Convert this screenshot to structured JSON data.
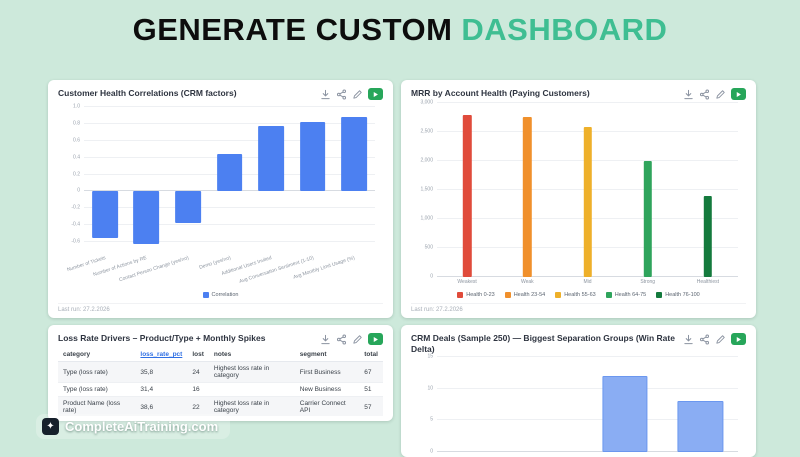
{
  "header": {
    "title_main": "GENERATE CUSTOM",
    "title_accent": "DASHBOARD"
  },
  "theme": {
    "background": "#cde9db",
    "accent": "#3fbe92",
    "run_button": "#27a65a",
    "bar_blue": "#4c80f1"
  },
  "branding": {
    "label": "CompleteAiTraining.com",
    "icon": "sparkle-icon"
  },
  "cards": {
    "correlations": {
      "title": "Customer Health Correlations (CRM factors)",
      "last_run": "Last run: 27.2.2026"
    },
    "mrr": {
      "title": "MRR by Account Health (Paying Customers)",
      "last_run": "Last run: 27.2.2026"
    },
    "loss": {
      "title": "Loss Rate Drivers – Product/Type + Monthly Spikes"
    },
    "crm": {
      "title": "CRM Deals (Sample 250) — Biggest Separation Groups (Win Rate Delta)"
    }
  },
  "chart_data": [
    {
      "type": "bar",
      "title": "Customer Health Correlations (CRM factors)",
      "categories": [
        "Number of Tickets",
        "Number of Actions by RE",
        "Contact Person Change (yes/no)",
        "Demo (yes/no)",
        "Additional Users Invited",
        "Avg Conversation Sentiment (1-10)",
        "Avg Monthly Limit Usage (%)"
      ],
      "values": [
        -0.55,
        -0.62,
        -0.38,
        0.45,
        0.78,
        0.82,
        0.88
      ],
      "series_name": "Correlation",
      "bar_color": "#4c80f1",
      "bar_width_pct": 62,
      "ylim": [
        -0.72,
        1.05
      ],
      "yticks": [
        {
          "v": 1.0,
          "label": "1.0"
        },
        {
          "v": 0.8,
          "label": "0.8"
        },
        {
          "v": 0.6,
          "label": "0.6"
        },
        {
          "v": 0.4,
          "label": "0.4"
        },
        {
          "v": 0.2,
          "label": "0.2"
        },
        {
          "v": 0,
          "label": "0"
        },
        {
          "v": -0.2,
          "label": "-0.2"
        },
        {
          "v": -0.4,
          "label": "-0.4"
        },
        {
          "v": -0.6,
          "label": "-0.6"
        }
      ],
      "rotate_labels": true,
      "grid": true,
      "legend_position": "bottom",
      "legend": [
        {
          "label": "Correlation",
          "color": "#4c80f1"
        }
      ]
    },
    {
      "type": "bar",
      "title": "MRR by Account Health (Paying Customers)",
      "categories": [
        "Weakest",
        "Weak",
        "Mid",
        "Strong",
        "Healthiest"
      ],
      "values": [
        2800,
        2760,
        2580,
        2000,
        1400
      ],
      "colors": [
        "#e04b3b",
        "#f0902c",
        "#eeb02a",
        "#2fa45c",
        "#147a3d"
      ],
      "bar_width_pct": 14,
      "ylim": [
        0,
        3000
      ],
      "yticks": [
        {
          "v": 3000,
          "label": "3,000"
        },
        {
          "v": 2500,
          "label": "2,500"
        },
        {
          "v": 2000,
          "label": "2,000"
        },
        {
          "v": 1500,
          "label": "1,500"
        },
        {
          "v": 1000,
          "label": "1,000"
        },
        {
          "v": 500,
          "label": "500"
        },
        {
          "v": 0,
          "label": "0"
        }
      ],
      "rotate_labels": false,
      "grid": true,
      "legend_position": "bottom",
      "legend": [
        {
          "label": "Health 0-23",
          "color": "#e04b3b"
        },
        {
          "label": "Health 23-54",
          "color": "#f0902c"
        },
        {
          "label": "Health 55-63",
          "color": "#eeb02a"
        },
        {
          "label": "Health 64-75",
          "color": "#2fa45c"
        },
        {
          "label": "Health 76-100",
          "color": "#147a3d"
        }
      ]
    },
    {
      "type": "table",
      "title": "Loss Rate Drivers – Product/Type + Monthly Spikes",
      "columns": [
        {
          "label": "category"
        },
        {
          "label": "loss_rate_pct",
          "link": true
        },
        {
          "label": "lost"
        },
        {
          "label": "notes"
        },
        {
          "label": "segment"
        },
        {
          "label": "total"
        }
      ],
      "rows": [
        [
          "Type (loss rate)",
          "35,8",
          "24",
          "Highest loss rate in category",
          "First Business",
          "67"
        ],
        [
          "Type (loss rate)",
          "31,4",
          "16",
          "",
          "New Business",
          "51"
        ],
        [
          "Product Name (loss rate)",
          "38,6",
          "22",
          "Highest loss rate in category",
          "Carrier Connect API",
          "57"
        ]
      ]
    },
    {
      "type": "bar",
      "title": "CRM Deals (Sample 250) — Biggest Separation Groups (Win Rate Delta)",
      "categories": [
        "",
        "",
        "",
        ""
      ],
      "values": [
        null,
        null,
        12,
        8
      ],
      "bar_color": "#8aadf3",
      "bar_border": "#6b97ef",
      "bar_width_pct": 60,
      "ylim": [
        0,
        15
      ],
      "yticks": [
        {
          "v": 15,
          "label": "15"
        },
        {
          "v": 10,
          "label": "10"
        },
        {
          "v": 5,
          "label": "5"
        },
        {
          "v": 0,
          "label": "0"
        }
      ],
      "rotate_labels": false,
      "grid": true
    }
  ]
}
